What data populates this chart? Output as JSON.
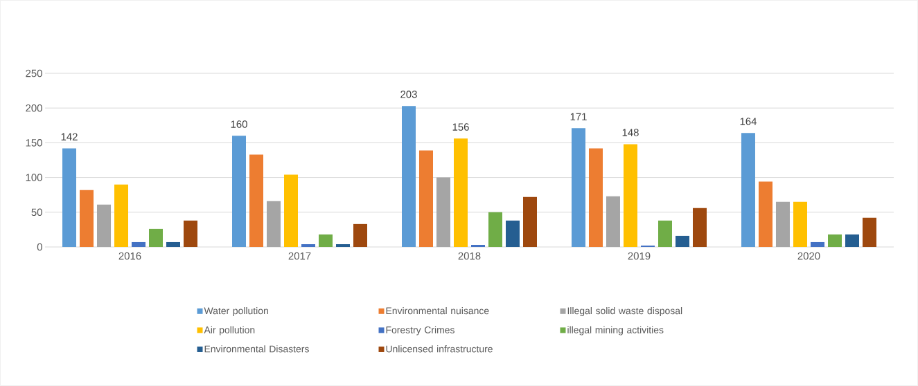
{
  "chart_data": {
    "type": "bar",
    "categories": [
      "2016",
      "2017",
      "2018",
      "2019",
      "2020"
    ],
    "series": [
      {
        "name": "Water pollution",
        "color": "#5b9bd5",
        "values": [
          142,
          160,
          203,
          171,
          164
        ],
        "value_labels": [
          "142",
          "160",
          "203",
          "171",
          "164"
        ]
      },
      {
        "name": "Environmental nuisance",
        "color": "#ed7d31",
        "values": [
          82,
          133,
          139,
          142,
          94
        ]
      },
      {
        "name": "Illegal solid waste disposal",
        "color": "#a5a5a5",
        "values": [
          61,
          66,
          100,
          73,
          65
        ]
      },
      {
        "name": "Air pollution",
        "color": "#ffc000",
        "values": [
          90,
          104,
          156,
          148,
          65
        ],
        "value_labels": [
          null,
          null,
          "156",
          "148",
          null
        ]
      },
      {
        "name": "Forestry Crimes",
        "color": "#4472c4",
        "values": [
          7,
          4,
          3,
          2,
          7
        ]
      },
      {
        "name": "illegal mining activities",
        "color": "#70ad47",
        "values": [
          26,
          18,
          50,
          38,
          18
        ]
      },
      {
        "name": "Environmental Disasters",
        "color": "#255e91",
        "values": [
          7,
          4,
          38,
          16,
          18
        ]
      },
      {
        "name": "Unlicensed infrastructure",
        "color": "#9e480e",
        "values": [
          38,
          33,
          72,
          56,
          42
        ]
      }
    ],
    "ylim": [
      0,
      250
    ],
    "yticks": [
      0,
      50,
      100,
      150,
      200,
      250
    ],
    "grid": "y",
    "legend": "bottom"
  }
}
